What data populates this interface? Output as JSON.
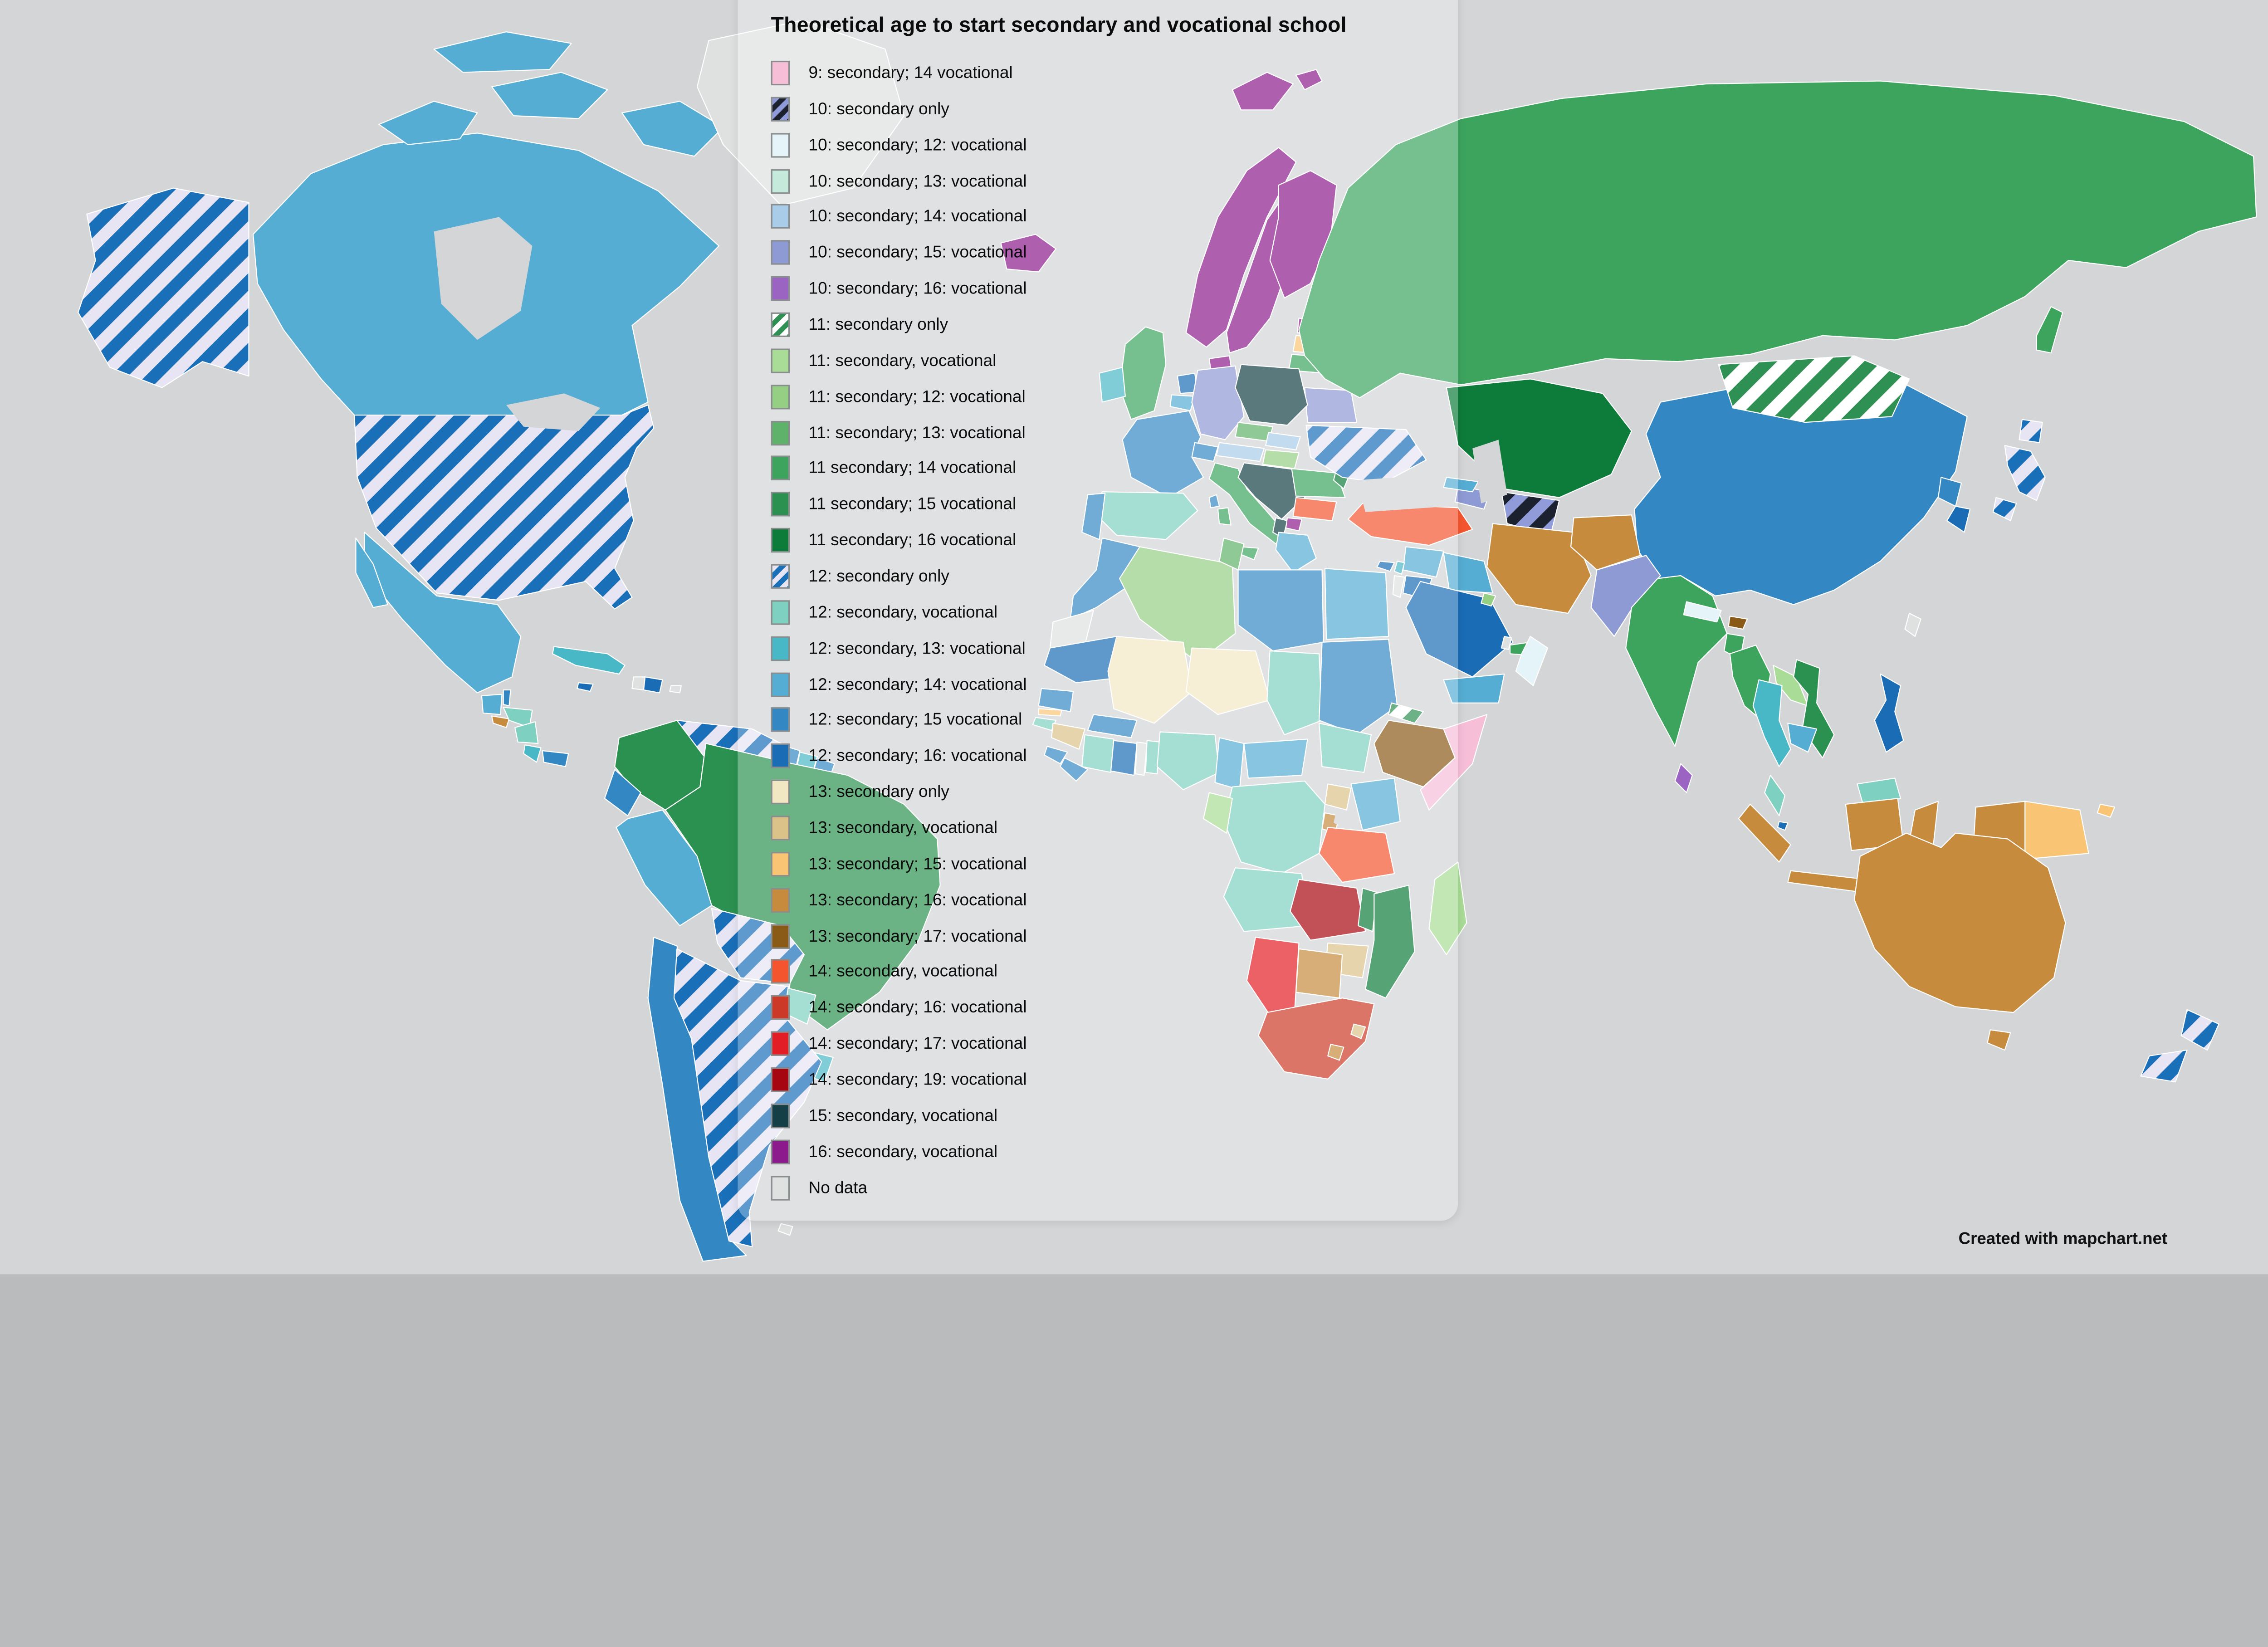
{
  "page": {
    "attribution": "Created with mapchart.net"
  },
  "colors": {
    "ocean": "#d3d5d6",
    "border": "#ffffff",
    "panel_tint": "rgba(255,255,255,0.30)"
  },
  "legend": {
    "title": "Theoretical age to start secondary and vocational school",
    "items": [
      {
        "key": "9_14",
        "label": "9: secondary; 14 vocational",
        "color": "#f7bed8"
      },
      {
        "key": "10_only",
        "label": "10: secondary only",
        "hatch": {
          "bg": "#8f9cd9",
          "stripe": "#1c2130"
        }
      },
      {
        "key": "10_12",
        "label": "10: secondary; 12: vocational",
        "color": "#e4f4f8"
      },
      {
        "key": "10_13",
        "label": "10: secondary; 13: vocational",
        "color": "#c5e9da"
      },
      {
        "key": "10_14",
        "label": "10: secondary; 14: vocational",
        "color": "#a9cce8"
      },
      {
        "key": "10_15",
        "label": "10: secondary; 15: vocational",
        "color": "#8e9ad4"
      },
      {
        "key": "10_16",
        "label": "10: secondary; 16: vocational",
        "color": "#9b64c3"
      },
      {
        "key": "11_only",
        "label": "11: secondary only",
        "hatch": {
          "bg": "#ffffff",
          "stripe": "#2f9053"
        }
      },
      {
        "key": "11_voc",
        "label": "11: secondary, vocational",
        "color": "#a9dc96"
      },
      {
        "key": "11_12",
        "label": "11: secondary; 12: vocational",
        "color": "#95cf84"
      },
      {
        "key": "11_13",
        "label": "11: secondary; 13: vocational",
        "color": "#5fb269"
      },
      {
        "key": "11_14",
        "label": "11 secondary; 14 vocational",
        "color": "#3ca45d"
      },
      {
        "key": "11_15",
        "label": "11 secondary; 15 vocational",
        "color": "#2b9150"
      },
      {
        "key": "11_16",
        "label": "11 secondary; 16 vocational",
        "color": "#0d7c3a"
      },
      {
        "key": "12_only",
        "label": "12: secondary only",
        "hatch": {
          "bg": "#e7e4f3",
          "stripe": "#1a6fb9"
        }
      },
      {
        "key": "12_voc",
        "label": "12: secondary, vocational",
        "color": "#7ed0c0"
      },
      {
        "key": "12_13",
        "label": "12: secondary, 13: vocational",
        "color": "#49b8c6"
      },
      {
        "key": "12_14",
        "label": "12: secondary; 14: vocational",
        "color": "#55add3"
      },
      {
        "key": "12_15",
        "label": "12: secondary; 15 vocational",
        "color": "#3388c4"
      },
      {
        "key": "12_16",
        "label": "12: secondary; 16: vocational",
        "color": "#1a6cb5"
      },
      {
        "key": "13_only",
        "label": "13: secondary only",
        "color": "#f2e7c3"
      },
      {
        "key": "13_voc",
        "label": "13: secondary, vocational",
        "color": "#dbc288"
      },
      {
        "key": "13_15",
        "label": "13: secondary; 15: vocational",
        "color": "#fac475"
      },
      {
        "key": "13_16",
        "label": "13: secondary; 16: vocational",
        "color": "#c78b3e"
      },
      {
        "key": "13_17",
        "label": "13: secondary; 17: vocational",
        "color": "#8a5a17"
      },
      {
        "key": "14_voc",
        "label": "14: secondary, vocational",
        "color": "#f5552e"
      },
      {
        "key": "14_16",
        "label": "14: secondary; 16: vocational",
        "color": "#cc3a27"
      },
      {
        "key": "14_17",
        "label": "14: secondary; 17: vocational",
        "color": "#e31d25"
      },
      {
        "key": "14_19",
        "label": "14: secondary; 19: vocational",
        "color": "#a6060f"
      },
      {
        "key": "15_voc",
        "label": "15: secondary, vocational",
        "color": "#143f46"
      },
      {
        "key": "16_voc",
        "label": "16: secondary, vocational",
        "color": "#8c1a8c"
      },
      {
        "key": "no_data",
        "label": "No data",
        "color": "#dfe1e1"
      }
    ]
  },
  "map": {
    "assignments": {
      "alaska": "12_only",
      "usa": "12_only",
      "canada": "12_14",
      "greenland": "no_data",
      "mexico": "12_14",
      "guatemala": "12_14",
      "belize": "12_15",
      "el-salvador": "13_16",
      "honduras": "12_voc",
      "nicaragua": "12_voc",
      "costa-rica": "12_13",
      "panama": "12_15",
      "cuba": "12_13",
      "haiti": "no_data",
      "dominican-republic": "12_16",
      "jamaica": "12_16",
      "puerto-rico": "no_data",
      "colombia": "11_15",
      "venezuela": "12_only",
      "guyana": "12_15",
      "suriname": "12_13",
      "french-guiana": "12_15",
      "ecuador": "12_15",
      "peru": "12_14",
      "brazil": "11_15",
      "bolivia": "12_only",
      "paraguay": "12_voc",
      "uruguay": "12_13",
      "chile": "12_15",
      "argentina": "12_only",
      "falkland-islands": "no_data",
      "iceland": "16_voc",
      "svalbard": "16_voc",
      "norway": "16_voc",
      "sweden": "16_voc",
      "finland": "16_voc",
      "denmark": "16_voc",
      "estonia": "16_voc",
      "latvia": "13_15",
      "lithuania": "11_14",
      "uk": "11_14",
      "ireland": "12_13",
      "netherlands": "12_16",
      "belgium": "12_14",
      "germany": "10_15",
      "france": "12_15",
      "spain": "12_voc",
      "portugal": "12_15",
      "switzerland": "12_15",
      "italy": "11_14",
      "czechia": "11_13",
      "slovakia": "10_14",
      "austria": "10_14",
      "hungary": "11_12",
      "balkans": "15_voc",
      "albania": "15_voc",
      "north-macedonia": "16_voc",
      "greece": "12_14",
      "bulgaria": "14_voc",
      "romania": "11_14",
      "moldova": "11_16",
      "ukraine": "12_only",
      "belarus": "10_15",
      "poland": "15_voc",
      "russia": "11_14",
      "kazakhstan-central-asia": "11_16",
      "turkmenistan": "10_only",
      "azerbaijan-armenia": "10_15",
      "georgia": "12_14",
      "turkey": "14_voc",
      "cyprus": "12_16",
      "syria": "12_14",
      "lebanon": "12_13",
      "israel": "no_data",
      "jordan": "12_16",
      "iraq": "12_14",
      "saudi-arabia": "12_16",
      "kuwait": "11_12",
      "qatar": "no_data",
      "uae": "11_14",
      "oman": "10_12",
      "yemen": "12_14",
      "iran": "13_16",
      "afghanistan": "13_16",
      "pakistan": "10_15",
      "india": "11_14",
      "nepal": "10_12",
      "bhutan": "13_17",
      "bangladesh": "11_14",
      "sri-lanka": "10_16",
      "china": "12_15",
      "mongolia": "11_only",
      "north-korea": "12_15",
      "south-korea": "12_16",
      "japan": "12_only",
      "taiwan": "no_data",
      "myanmar": "11_14",
      "laos": "11_voc",
      "vietnam": "11_15",
      "thailand": "12_13",
      "cambodia": "12_14",
      "malaysia": "12_voc",
      "singapore": "12_16",
      "philippines": "12_16",
      "indonesia": "13_16",
      "papua-new-guinea": "13_15",
      "morocco": "12_15",
      "western-sahara": "no_data",
      "algeria": "11_12",
      "tunisia": "11_13",
      "libya": "12_15",
      "egypt": "12_14",
      "mauritania": "12_16",
      "mali": "13_only",
      "niger": "13_only",
      "chad": "12_voc",
      "sudan": "12_15",
      "eritrea": "11_only",
      "djibouti": "11_16",
      "ethiopia": "13_17",
      "somalia": "9_14",
      "senegal": "12_15",
      "gambia": "13_15",
      "guinea-bissau": "12_voc",
      "guinea": "13_voc",
      "sierra-leone": "12_15",
      "liberia": "12_15",
      "ivory-coast": "12_voc",
      "ghana": "12_16",
      "togo": "no_data",
      "benin": "12_voc",
      "burkina-faso": "12_15",
      "nigeria": "12_voc",
      "cameroon": "12_14",
      "central-african-republic": "12_14",
      "south-sudan": "12_voc",
      "uganda": "13_voc",
      "kenya": "12_14",
      "rwanda-burundi": "13_16",
      "dr-congo": "12_voc",
      "gabon-congo": "11_voc",
      "angola": "12_voc",
      "zambia": "14_19",
      "malawi": "11_16",
      "mozambique": "11_16",
      "tanzania": "14_voc",
      "zimbabwe": "13_voc",
      "botswana": "13_16",
      "namibia": "14_17",
      "south-africa": "14_16",
      "lesotho": "13_16",
      "eswatini": "13_voc",
      "madagascar": "11_voc",
      "australia": "13_16",
      "new-zealand": "12_only"
    }
  }
}
